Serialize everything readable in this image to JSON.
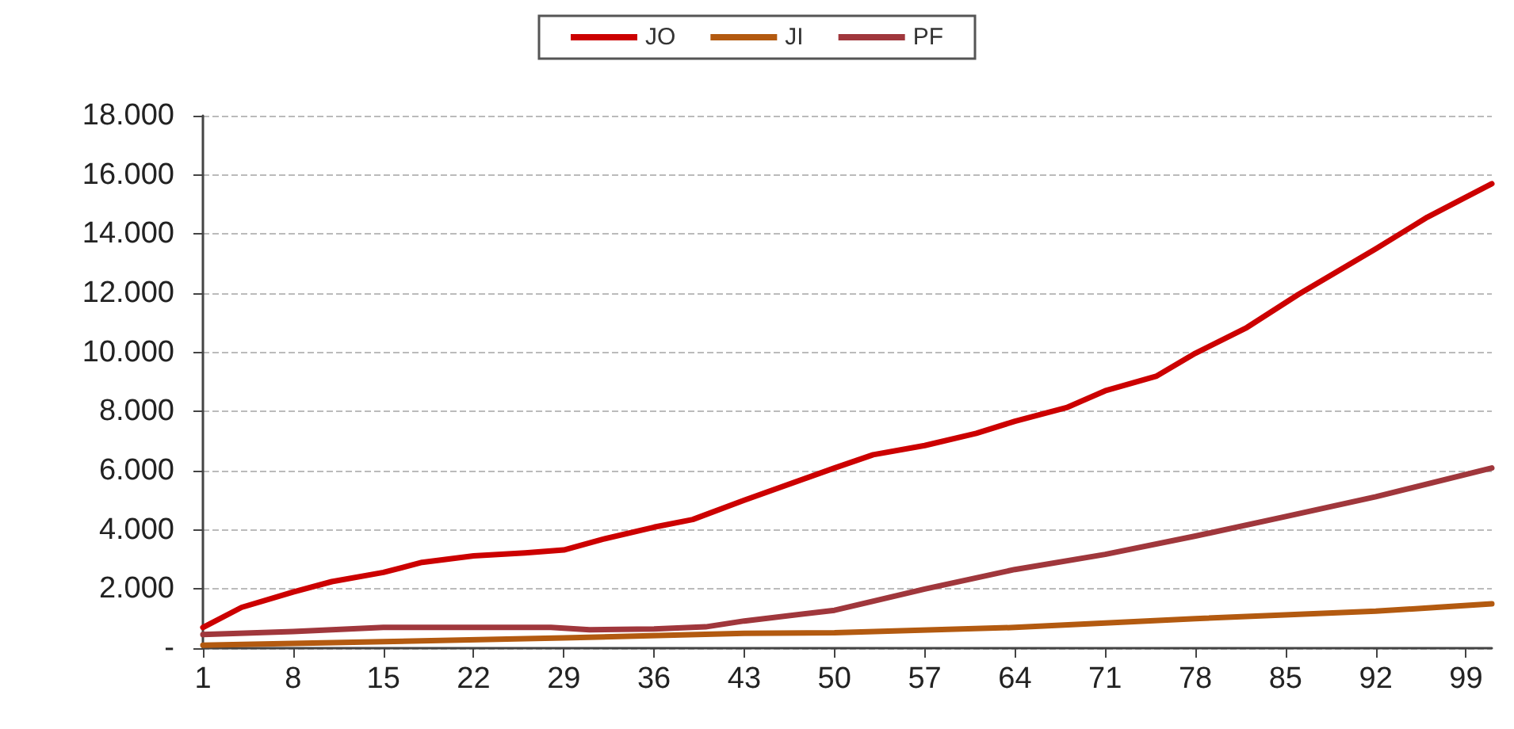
{
  "chart_data": {
    "type": "line",
    "legend": "top",
    "grid": "y",
    "marker": "none",
    "line_style": "solid",
    "xlim": [
      1,
      101
    ],
    "xticks": [
      1,
      8,
      15,
      22,
      29,
      36,
      43,
      50,
      57,
      64,
      71,
      78,
      85,
      92,
      99
    ],
    "ylim": [
      0,
      18000
    ],
    "yticks": [
      {
        "value": 0,
        "label": "-"
      },
      {
        "value": 2000,
        "label": "2.000"
      },
      {
        "value": 4000,
        "label": "4.000"
      },
      {
        "value": 6000,
        "label": "6.000"
      },
      {
        "value": 8000,
        "label": "8.000"
      },
      {
        "value": 10000,
        "label": "10.000"
      },
      {
        "value": 12000,
        "label": "12.000"
      },
      {
        "value": 14000,
        "label": "14.000"
      },
      {
        "value": 16000,
        "label": "16.000"
      },
      {
        "value": 18000,
        "label": "18.000"
      }
    ],
    "series": [
      {
        "name": "JO",
        "color": "#cc0000",
        "x": [
          1,
          4,
          8,
          11,
          15,
          18,
          22,
          26,
          29,
          32,
          36,
          39,
          43,
          50,
          53,
          57,
          61,
          64,
          68,
          71,
          75,
          78,
          82,
          86,
          89,
          92,
          96,
          101
        ],
        "values": [
          700,
          1380,
          1900,
          2250,
          2560,
          2900,
          3120,
          3220,
          3320,
          3680,
          4090,
          4350,
          5000,
          6090,
          6540,
          6850,
          7260,
          7670,
          8130,
          8700,
          9200,
          9970,
          10840,
          11960,
          12730,
          13500,
          14570,
          15700
        ]
      },
      {
        "name": "JI",
        "color": "#b35a10",
        "x": [
          1,
          15,
          29,
          43,
          50,
          64,
          78,
          92,
          101
        ],
        "values": [
          100,
          220,
          350,
          500,
          520,
          700,
          1000,
          1250,
          1500
        ]
      },
      {
        "name": "PF",
        "color": "#a0373c",
        "x": [
          1,
          8,
          15,
          28,
          31,
          36,
          40,
          43,
          50,
          57,
          64,
          71,
          78,
          85,
          92,
          101
        ],
        "values": [
          460,
          560,
          700,
          700,
          620,
          650,
          720,
          920,
          1280,
          2000,
          2660,
          3170,
          3790,
          4450,
          5120,
          6090
        ]
      }
    ]
  }
}
